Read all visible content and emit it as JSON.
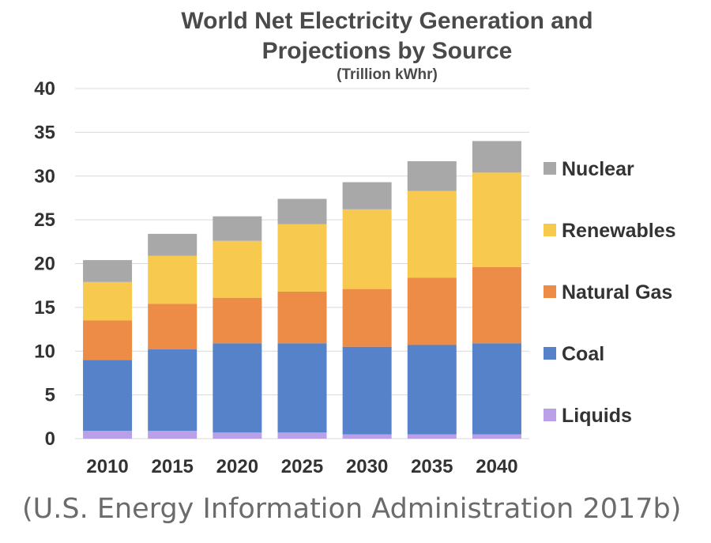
{
  "source_note": "(U.S. Energy Information Administration 2017b)",
  "chart_data": {
    "type": "bar",
    "stacked": true,
    "title": "World Net Electricity Generation and",
    "title_line2": "Projections by Source",
    "subtitle": "(Trillion kWhr)",
    "categories": [
      "2010",
      "2015",
      "2020",
      "2025",
      "2030",
      "2035",
      "2040"
    ],
    "ylim": [
      0,
      40
    ],
    "yticks": [
      0,
      5,
      10,
      15,
      20,
      25,
      30,
      35,
      40
    ],
    "grid": true,
    "legend_position": "right",
    "series": [
      {
        "name": "Liquids",
        "color": "#b9a0e8",
        "values": [
          0.9,
          0.9,
          0.7,
          0.7,
          0.5,
          0.5,
          0.5
        ]
      },
      {
        "name": "Coal",
        "color": "#5582c9",
        "values": [
          8.1,
          9.3,
          10.2,
          10.2,
          10.0,
          10.2,
          10.4
        ]
      },
      {
        "name": "Natural Gas",
        "color": "#ec8c46",
        "values": [
          4.5,
          5.2,
          5.2,
          5.9,
          6.6,
          7.7,
          8.7
        ]
      },
      {
        "name": "Renewables",
        "color": "#f7c94f",
        "values": [
          4.4,
          5.5,
          6.5,
          7.7,
          9.1,
          9.9,
          10.8
        ]
      },
      {
        "name": "Nuclear",
        "color": "#a8a8a8",
        "values": [
          2.5,
          2.5,
          2.8,
          2.9,
          3.1,
          3.4,
          3.6
        ]
      }
    ]
  }
}
